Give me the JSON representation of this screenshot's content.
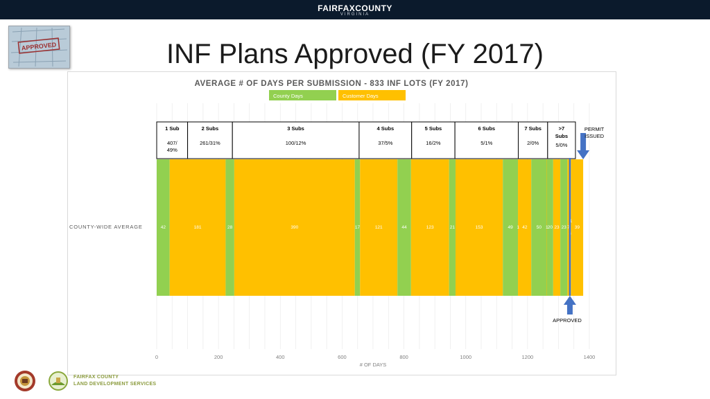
{
  "header": {
    "org_name": "FAIRFAXCOUNTY",
    "org_sub": "VIRGINIA"
  },
  "slide": {
    "title": "INF Plans Approved (FY 2017)",
    "stamp_text": "APPROVED"
  },
  "footer": {
    "line1": "FAIRFAX COUNTY",
    "line2": "LAND DEVELOPMENT SERVICES"
  },
  "colors": {
    "county": "#92D050",
    "customer": "#FFC000",
    "arrow": "#4472C4",
    "topbar": "#0b1a2c"
  },
  "chart_data": {
    "type": "bar",
    "orientation": "horizontal-stacked",
    "title": "AVERAGE # OF DAYS PER SUBMISSION - 833 INF LOTS (FY 2017)",
    "xlabel": "# OF DAYS",
    "row_label": "COUNTY-WIDE AVERAGE",
    "xlim": [
      0,
      1400
    ],
    "xticks": [
      0,
      200,
      400,
      600,
      800,
      1000,
      1200,
      1400
    ],
    "legend": [
      "County Days",
      "Customer Days"
    ],
    "legend_position": "top",
    "segments": [
      {
        "type": "county",
        "value": 42,
        "label": "42"
      },
      {
        "type": "customer",
        "value": 181,
        "label": "181"
      },
      {
        "type": "county",
        "value": 28,
        "label": "28"
      },
      {
        "type": "customer",
        "value": 390,
        "label": "390"
      },
      {
        "type": "county",
        "value": 17,
        "label": "17"
      },
      {
        "type": "customer",
        "value": 121,
        "label": "121"
      },
      {
        "type": "county",
        "value": 44,
        "label": "44"
      },
      {
        "type": "customer",
        "value": 123,
        "label": "123"
      },
      {
        "type": "county",
        "value": 21,
        "label": "21"
      },
      {
        "type": "customer",
        "value": 153,
        "label": "153"
      },
      {
        "type": "county",
        "value": 49,
        "label": "49"
      },
      {
        "type": "customer",
        "value": 1,
        "label": "1"
      },
      {
        "type": "customer",
        "value": 42,
        "label": "42"
      },
      {
        "type": "county",
        "value": 50,
        "label": "50"
      },
      {
        "type": "customer",
        "value": 1,
        "label": "1"
      },
      {
        "type": "county",
        "value": 20,
        "label": "20"
      },
      {
        "type": "customer",
        "value": 23,
        "label": "23"
      },
      {
        "type": "county",
        "value": 23,
        "label": "23"
      },
      {
        "type": "customer",
        "value": 7,
        "label": "7"
      },
      {
        "type": "county",
        "value": 4,
        "label": "4"
      },
      {
        "type": "customer",
        "value": 1,
        "label": "1"
      },
      {
        "type": "customer",
        "value": 39,
        "label": "39"
      }
    ],
    "submission_groups": [
      {
        "start": 0,
        "end": 100,
        "title": "1 Sub",
        "stat": "407/\n49%"
      },
      {
        "start": 100,
        "end": 245,
        "title": "2 Subs",
        "stat": "261/31%"
      },
      {
        "start": 245,
        "end": 655,
        "title": "3 Subs",
        "stat": "100/12%"
      },
      {
        "start": 655,
        "end": 825,
        "title": "4 Subs",
        "stat": "37/5%"
      },
      {
        "start": 825,
        "end": 965,
        "title": "5 Subs",
        "stat": "16/2%"
      },
      {
        "start": 965,
        "end": 1170,
        "title": "6 Subs",
        "stat": "5/1%"
      },
      {
        "start": 1170,
        "end": 1265,
        "title": "7 Subs",
        "stat": "2/0%"
      },
      {
        "start": 1265,
        "end": 1355,
        "title": ">7\nSubs",
        "stat": "5/0%"
      }
    ],
    "markers": [
      {
        "label": "PERMIT\nISSUED",
        "x": 1380,
        "position": "top"
      },
      {
        "label": "APPROVED",
        "x": 1337,
        "position": "bottom"
      }
    ]
  }
}
